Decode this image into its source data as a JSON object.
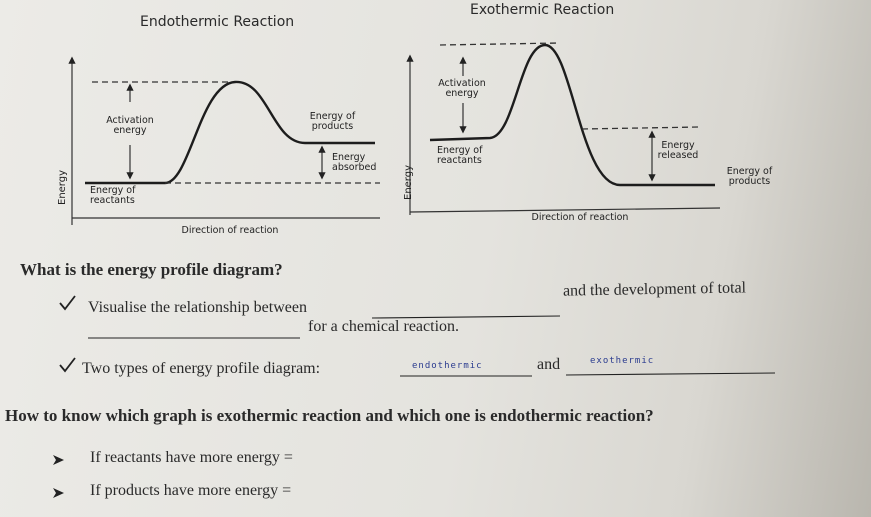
{
  "diagrams": [
    {
      "title": "Endothermic Reaction",
      "activation": "Activation energy",
      "energy_change_level": "Energy of products",
      "energy_change": "Energy absorbed",
      "reactants": "Energy of reactants",
      "y_label": "Energy",
      "x_label": "Direction of reaction"
    },
    {
      "title": "Exothermic Reaction",
      "activation": "Activation energy",
      "energy_change_level": "Energy of products",
      "energy_change": "Energy released",
      "reactants": "Energy of reactants",
      "y_label": "Energy",
      "x_label": "Direction of reaction"
    }
  ],
  "questions": [
    {
      "heading": "What is the energy profile diagram?",
      "items": [
        {
          "parts": [
            "Visualise the relationship between",
            "and the development of total",
            "for a chemical reaction."
          ]
        },
        {
          "parts": [
            "Two types of energy profile diagram:",
            "and"
          ],
          "answers": [
            "endothermic",
            "exothermic"
          ]
        }
      ]
    },
    {
      "heading": "How to know which graph is exothermic reaction and which one is endothermic reaction?",
      "items": [
        "If reactants have more energy =",
        "If products have more energy ="
      ]
    }
  ]
}
